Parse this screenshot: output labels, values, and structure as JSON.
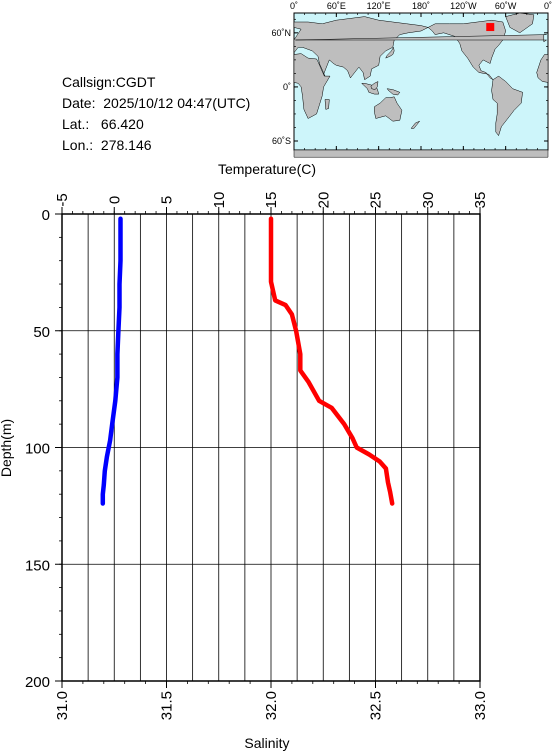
{
  "station": {
    "callsign_label": "Callsign:",
    "callsign": "CGDT",
    "date_label": "Date:",
    "date": "2025/10/12 04:47(UTC)",
    "lat_label": "Lat.:",
    "lat": "66.420",
    "lon_label": "Lon.:",
    "lon": "278.146"
  },
  "map": {
    "lon_ticks": [
      "0˚",
      "60˚E",
      "120˚E",
      "180˚",
      "120˚W",
      "60˚W",
      "0˚"
    ],
    "lat_ticks": [
      "60˚N",
      "0˚",
      "60˚S"
    ],
    "ocean_color": "#cdf5fa",
    "land_color": "#bebebe",
    "marker_color": "#ff0000"
  },
  "chart_data": {
    "type": "line",
    "ylabel": "Depth(m)",
    "ylim": [
      200,
      0
    ],
    "yticks": [
      0,
      50,
      100,
      150,
      200
    ],
    "top_axis": {
      "label": "Temperature(C)",
      "lim": [
        -5,
        35
      ],
      "ticks": [
        -5,
        0,
        5,
        10,
        15,
        20,
        25,
        30,
        35
      ]
    },
    "bottom_axis": {
      "label": "Salinity",
      "lim": [
        31.0,
        33.0
      ],
      "ticks": [
        "31.0",
        "31.5",
        "32.0",
        "32.5",
        "33.0"
      ]
    },
    "grid": true,
    "series": [
      {
        "axis": "top",
        "color": "#0000ff",
        "points": [
          [
            0.6,
            2
          ],
          [
            0.6,
            10
          ],
          [
            0.6,
            20
          ],
          [
            0.5,
            30
          ],
          [
            0.5,
            40
          ],
          [
            0.4,
            50
          ],
          [
            0.3,
            60
          ],
          [
            0.3,
            70
          ],
          [
            0.1,
            80
          ],
          [
            -0.2,
            90
          ],
          [
            -0.4,
            97
          ],
          [
            -0.7,
            104
          ],
          [
            -0.9,
            110
          ],
          [
            -1.0,
            116
          ],
          [
            -1.1,
            120
          ],
          [
            -1.1,
            124
          ]
        ]
      },
      {
        "axis": "bottom",
        "color": "#ff0000",
        "points": [
          [
            32.0,
            2
          ],
          [
            32.0,
            15
          ],
          [
            32.0,
            29
          ],
          [
            32.02,
            37
          ],
          [
            32.07,
            39
          ],
          [
            32.1,
            43
          ],
          [
            32.12,
            50
          ],
          [
            32.14,
            60
          ],
          [
            32.14,
            67
          ],
          [
            32.18,
            72
          ],
          [
            32.23,
            80
          ],
          [
            32.29,
            83
          ],
          [
            32.35,
            90
          ],
          [
            32.39,
            96
          ],
          [
            32.41,
            100
          ],
          [
            32.47,
            103
          ],
          [
            32.52,
            106
          ],
          [
            32.55,
            109
          ],
          [
            32.56,
            115
          ],
          [
            32.57,
            119
          ],
          [
            32.58,
            124
          ]
        ]
      }
    ]
  }
}
